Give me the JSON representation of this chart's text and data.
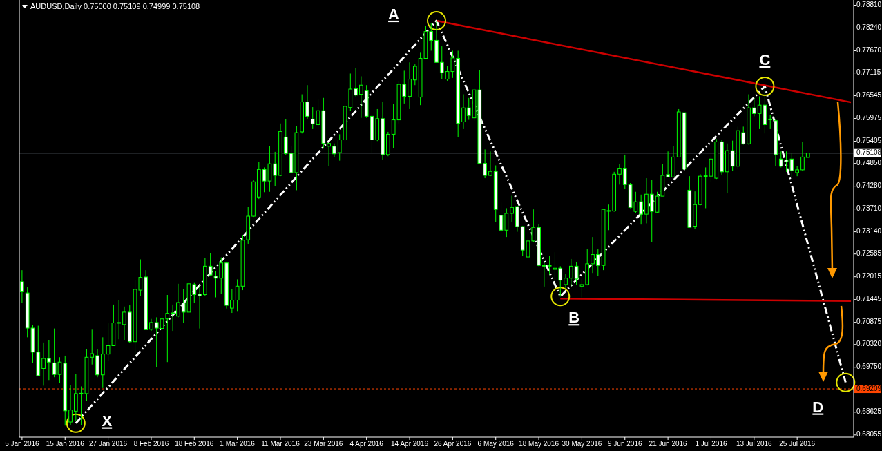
{
  "chart_data": {
    "type": "candlestick",
    "title": "AUDUSD,Daily  0.75000 0.75109 0.74999 0.75108",
    "color": "#00ff00",
    "categories": [
      "5 Jan 2016",
      null,
      null,
      null,
      null,
      null,
      null,
      null,
      "15 Jan 2016",
      null,
      null,
      null,
      null,
      null,
      null,
      null,
      "27 Jan 2016",
      null,
      null,
      null,
      null,
      null,
      null,
      null,
      "8 Feb 2016",
      null,
      null,
      null,
      null,
      null,
      null,
      null,
      "18 Feb 2016",
      null,
      null,
      null,
      null,
      null,
      null,
      null,
      "1 Mar 2016",
      null,
      null,
      null,
      null,
      null,
      null,
      null,
      "11 Mar 2016",
      null,
      null,
      null,
      null,
      null,
      null,
      null,
      "23 Mar 2016",
      null,
      null,
      null,
      null,
      null,
      null,
      null,
      "4 Apr 2016",
      null,
      null,
      null,
      null,
      null,
      null,
      null,
      "14 Apr 2016",
      null,
      null,
      null,
      null,
      null,
      null,
      null,
      "26 Apr 2016",
      null,
      null,
      null,
      null,
      null,
      null,
      null,
      "6 May 2016",
      null,
      null,
      null,
      null,
      null,
      null,
      null,
      "18 May 2016",
      null,
      null,
      null,
      null,
      null,
      null,
      null,
      "30 May 2016",
      null,
      null,
      null,
      null,
      null,
      null,
      null,
      "9 Jun 2016",
      null,
      null,
      null,
      null,
      null,
      null,
      null,
      "21 Jun 2016",
      null,
      null,
      null,
      null,
      null,
      null,
      null,
      "1 Jul 2016",
      null,
      null,
      null,
      null,
      null,
      null,
      null,
      "13 Jul 2016",
      null,
      null,
      null,
      null,
      null,
      null,
      null,
      "25 Jul 2016",
      null,
      null,
      null,
      null,
      null,
      null,
      null,
      null,
      null,
      null
    ],
    "ohlc": [
      [
        0.7189,
        0.7218,
        0.7136,
        0.7164
      ],
      [
        0.7161,
        0.7175,
        0.705,
        0.7073
      ],
      [
        0.7073,
        0.708,
        0.6985,
        0.7013
      ],
      [
        0.7013,
        0.7079,
        0.6954,
        0.6954
      ],
      [
        0.6972,
        0.7037,
        0.6929,
        0.6997
      ],
      [
        0.6997,
        0.7043,
        0.6943,
        0.6988
      ],
      [
        0.6986,
        0.7072,
        0.695,
        0.6957
      ],
      [
        0.6957,
        0.7,
        0.6936,
        0.6988
      ],
      [
        0.6985,
        0.7004,
        0.6829,
        0.6866
      ],
      [
        0.6838,
        0.6931,
        0.6831,
        0.6868
      ],
      [
        0.6865,
        0.6959,
        0.684,
        0.6909
      ],
      [
        0.6909,
        0.6927,
        0.6831,
        0.691
      ],
      [
        0.6909,
        0.702,
        0.689,
        0.7
      ],
      [
        0.7,
        0.7069,
        0.6982,
        0.7009
      ],
      [
        0.7004,
        0.702,
        0.695,
        0.6956
      ],
      [
        0.6956,
        0.705,
        0.6923,
        0.7008
      ],
      [
        0.7008,
        0.7085,
        0.699,
        0.7029
      ],
      [
        0.7029,
        0.7132,
        0.7029,
        0.7086
      ],
      [
        0.7086,
        0.7143,
        0.7045,
        0.7087
      ],
      [
        0.7082,
        0.7127,
        0.7043,
        0.7113
      ],
      [
        0.7113,
        0.713,
        0.7036,
        0.7039
      ],
      [
        0.7039,
        0.7193,
        0.7004,
        0.717
      ],
      [
        0.7168,
        0.7245,
        0.7154,
        0.72
      ],
      [
        0.7201,
        0.7218,
        0.7068,
        0.7069
      ],
      [
        0.707,
        0.7096,
        0.7066,
        0.7087
      ],
      [
        0.7087,
        0.71,
        0.6975,
        0.7073
      ],
      [
        0.7072,
        0.7118,
        0.7039,
        0.7096
      ],
      [
        0.7096,
        0.7156,
        0.6988,
        0.711
      ],
      [
        0.711,
        0.7132,
        0.7066,
        0.7111
      ],
      [
        0.7103,
        0.7184,
        0.71,
        0.7137
      ],
      [
        0.7136,
        0.7171,
        0.7086,
        0.7113
      ],
      [
        0.7113,
        0.7189,
        0.7086,
        0.7184
      ],
      [
        0.7182,
        0.7186,
        0.7136,
        0.7157
      ],
      [
        0.7158,
        0.7182,
        0.7072,
        0.7154
      ],
      [
        0.7157,
        0.7249,
        0.7154,
        0.7228
      ],
      [
        0.7228,
        0.7261,
        0.7203,
        0.7206
      ],
      [
        0.7203,
        0.7216,
        0.715,
        0.7198
      ],
      [
        0.7198,
        0.725,
        0.7158,
        0.7236
      ],
      [
        0.7236,
        0.7239,
        0.7122,
        0.713
      ],
      [
        0.7123,
        0.7171,
        0.7111,
        0.7143
      ],
      [
        0.7143,
        0.7195,
        0.7114,
        0.7178
      ],
      [
        0.7178,
        0.7306,
        0.7168,
        0.7293
      ],
      [
        0.7294,
        0.7377,
        0.7284,
        0.7353
      ],
      [
        0.7353,
        0.7444,
        0.7351,
        0.7439
      ],
      [
        0.7401,
        0.7489,
        0.7396,
        0.747
      ],
      [
        0.747,
        0.7475,
        0.7413,
        0.7441
      ],
      [
        0.7441,
        0.7529,
        0.7414,
        0.7484
      ],
      [
        0.7484,
        0.7514,
        0.7428,
        0.7455
      ],
      [
        0.7455,
        0.7585,
        0.7453,
        0.7565
      ],
      [
        0.7551,
        0.7596,
        0.7507,
        0.751
      ],
      [
        0.751,
        0.7529,
        0.746,
        0.7462
      ],
      [
        0.7462,
        0.7578,
        0.7418,
        0.7562
      ],
      [
        0.7564,
        0.7658,
        0.756,
        0.7639
      ],
      [
        0.7639,
        0.7681,
        0.7596,
        0.7603
      ],
      [
        0.7596,
        0.7626,
        0.7571,
        0.7584
      ],
      [
        0.7582,
        0.7645,
        0.7571,
        0.7617
      ],
      [
        0.7617,
        0.7649,
        0.7524,
        0.7535
      ],
      [
        0.7528,
        0.7537,
        0.7478,
        0.7535
      ],
      [
        0.7528,
        0.7535,
        0.75,
        0.7509
      ],
      [
        0.7512,
        0.7558,
        0.7492,
        0.7544
      ],
      [
        0.7544,
        0.7646,
        0.7514,
        0.7628
      ],
      [
        0.7625,
        0.771,
        0.7617,
        0.7671
      ],
      [
        0.7672,
        0.7724,
        0.7653,
        0.7656
      ],
      [
        0.7658,
        0.7703,
        0.7599,
        0.7681
      ],
      [
        0.7667,
        0.7681,
        0.7599,
        0.7603
      ],
      [
        0.7603,
        0.7607,
        0.7512,
        0.7544
      ],
      [
        0.7544,
        0.7621,
        0.7541,
        0.7597
      ],
      [
        0.7597,
        0.7639,
        0.7494,
        0.7507
      ],
      [
        0.7507,
        0.7564,
        0.7503,
        0.7558
      ],
      [
        0.7558,
        0.7634,
        0.7524,
        0.7594
      ],
      [
        0.7594,
        0.7692,
        0.7585,
        0.7683
      ],
      [
        0.7683,
        0.7717,
        0.7635,
        0.7653
      ],
      [
        0.7653,
        0.7738,
        0.7621,
        0.7696
      ],
      [
        0.7694,
        0.7733,
        0.7681,
        0.7728
      ],
      [
        0.7651,
        0.7762,
        0.7631,
        0.7748
      ],
      [
        0.7748,
        0.7829,
        0.7747,
        0.7815
      ],
      [
        0.7815,
        0.7836,
        0.7767,
        0.7793
      ],
      [
        0.7793,
        0.7842,
        0.7738,
        0.7738
      ],
      [
        0.7738,
        0.7778,
        0.7696,
        0.7712
      ],
      [
        0.7696,
        0.7729,
        0.7692,
        0.7715
      ],
      [
        0.7715,
        0.7767,
        0.7699,
        0.7749
      ],
      [
        0.7748,
        0.7767,
        0.7551,
        0.7585
      ],
      [
        0.7589,
        0.7658,
        0.7571,
        0.7624
      ],
      [
        0.7624,
        0.7649,
        0.7594,
        0.7605
      ],
      [
        0.7599,
        0.7672,
        0.7592,
        0.7669
      ],
      [
        0.7669,
        0.7719,
        0.7485,
        0.7485
      ],
      [
        0.7485,
        0.752,
        0.7448,
        0.7455
      ],
      [
        0.7455,
        0.7515,
        0.7453,
        0.7465
      ],
      [
        0.7465,
        0.748,
        0.7339,
        0.737
      ],
      [
        0.7355,
        0.7387,
        0.7308,
        0.7318
      ],
      [
        0.7318,
        0.7373,
        0.7301,
        0.736
      ],
      [
        0.736,
        0.7404,
        0.7339,
        0.7375
      ],
      [
        0.7377,
        0.7379,
        0.7314,
        0.7327
      ],
      [
        0.7327,
        0.7328,
        0.7253,
        0.7268
      ],
      [
        0.7251,
        0.7314,
        0.725,
        0.7291
      ],
      [
        0.7291,
        0.737,
        0.7289,
        0.7325
      ],
      [
        0.7325,
        0.7334,
        0.7228,
        0.723
      ],
      [
        0.723,
        0.7239,
        0.7177,
        0.7229
      ],
      [
        0.7229,
        0.7253,
        0.7207,
        0.723
      ],
      [
        0.722,
        0.7263,
        0.717,
        0.7223
      ],
      [
        0.7223,
        0.7228,
        0.7152,
        0.7193
      ],
      [
        0.7182,
        0.7208,
        0.7173,
        0.7198
      ],
      [
        0.7198,
        0.7246,
        0.7178,
        0.7228
      ],
      [
        0.7228,
        0.7239,
        0.7182,
        0.7196
      ],
      [
        0.7178,
        0.7196,
        0.715,
        0.7182
      ],
      [
        0.7182,
        0.727,
        0.718,
        0.7234
      ],
      [
        0.7234,
        0.7301,
        0.7211,
        0.7257
      ],
      [
        0.7257,
        0.727,
        0.7204,
        0.723
      ],
      [
        0.723,
        0.7371,
        0.7218,
        0.737
      ],
      [
        0.7366,
        0.7382,
        0.7318,
        0.7367
      ],
      [
        0.7366,
        0.7464,
        0.7364,
        0.7458
      ],
      [
        0.7458,
        0.7484,
        0.7432,
        0.7473
      ],
      [
        0.7473,
        0.7507,
        0.7421,
        0.7432
      ],
      [
        0.7432,
        0.7436,
        0.7373,
        0.7375
      ],
      [
        0.7365,
        0.7414,
        0.736,
        0.7389
      ],
      [
        0.7389,
        0.7407,
        0.7332,
        0.7358
      ],
      [
        0.7358,
        0.7448,
        0.7335,
        0.7408
      ],
      [
        0.7408,
        0.7443,
        0.7289,
        0.7365
      ],
      [
        0.7363,
        0.7414,
        0.736,
        0.7403
      ],
      [
        0.7403,
        0.7484,
        0.7403,
        0.7455
      ],
      [
        0.7457,
        0.7515,
        0.745,
        0.7451
      ],
      [
        0.7451,
        0.7528,
        0.745,
        0.7501
      ],
      [
        0.7501,
        0.7621,
        0.75,
        0.7614
      ],
      [
        0.7612,
        0.7651,
        0.7306,
        0.7471
      ],
      [
        0.7418,
        0.7453,
        0.7325,
        0.7325
      ],
      [
        0.7328,
        0.7415,
        0.7321,
        0.7382
      ],
      [
        0.7382,
        0.7458,
        0.738,
        0.7453
      ],
      [
        0.7453,
        0.7475,
        0.7373,
        0.7454
      ],
      [
        0.7453,
        0.7503,
        0.7439,
        0.7496
      ],
      [
        0.7448,
        0.7546,
        0.7446,
        0.7539
      ],
      [
        0.7539,
        0.7544,
        0.7457,
        0.7464
      ],
      [
        0.7464,
        0.7535,
        0.741,
        0.7517
      ],
      [
        0.7517,
        0.7542,
        0.7467,
        0.7478
      ],
      [
        0.7478,
        0.7577,
        0.7471,
        0.7567
      ],
      [
        0.7562,
        0.7577,
        0.7532,
        0.7534
      ],
      [
        0.7534,
        0.7658,
        0.7532,
        0.7624
      ],
      [
        0.7624,
        0.7649,
        0.7603,
        0.761
      ],
      [
        0.761,
        0.7653,
        0.7571,
        0.7631
      ],
      [
        0.7631,
        0.7678,
        0.756,
        0.7582
      ],
      [
        0.7596,
        0.7607,
        0.7571,
        0.7595
      ],
      [
        0.7592,
        0.7596,
        0.7478,
        0.7507
      ],
      [
        0.7496,
        0.7515,
        0.7475,
        0.7478
      ],
      [
        0.7494,
        0.7515,
        0.7464,
        0.7489
      ],
      [
        0.7496,
        0.751,
        0.745,
        0.7467
      ],
      [
        0.7462,
        0.7478,
        0.7453,
        0.7469
      ],
      [
        0.7469,
        0.7539,
        0.7467,
        0.7501
      ],
      [
        0.75,
        0.75109,
        0.74999,
        0.75108
      ],
      null,
      null,
      null,
      null,
      null,
      null,
      null,
      null
    ],
    "series": [
      {
        "type": "line",
        "color": "#ffffff",
        "line_style": "dashed",
        "marker": "circle",
        "values": [
          null,
          null,
          null,
          null,
          null,
          null,
          null,
          null,
          null,
          null,
          0.6835,
          null,
          null,
          null,
          null,
          null,
          null,
          null,
          null,
          null,
          null,
          null,
          null,
          null,
          null,
          null,
          null,
          null,
          null,
          null,
          null,
          null,
          null,
          null,
          null,
          null,
          null,
          null,
          null,
          null,
          null,
          null,
          null,
          null,
          null,
          null,
          null,
          null,
          null,
          null,
          null,
          null,
          null,
          null,
          null,
          null,
          null,
          null,
          null,
          null,
          null,
          null,
          null,
          null,
          null,
          null,
          null,
          null,
          null,
          null,
          null,
          null,
          null,
          null,
          null,
          null,
          null,
          0.7842,
          null,
          null,
          null,
          null,
          null,
          null,
          null,
          null,
          null,
          null,
          null,
          null,
          null,
          null,
          null,
          null,
          null,
          null,
          null,
          null,
          null,
          null,
          0.7152,
          null,
          null,
          null,
          null,
          null,
          null,
          null,
          null,
          null,
          null,
          null,
          null,
          null,
          null,
          null,
          null,
          null,
          null,
          null,
          null,
          null,
          null,
          null,
          null,
          null,
          null,
          null,
          null,
          null,
          null,
          null,
          null,
          null,
          null,
          null,
          null,
          null,
          0.7678,
          null,
          null,
          null,
          null,
          null,
          null,
          null,
          null,
          null,
          null,
          null,
          null,
          null,
          null,
          0.6937,
          null
        ]
      },
      {
        "type": "line",
        "color": "#cc0000",
        "values": [
          null,
          null,
          null,
          null,
          null,
          null,
          null,
          null,
          null,
          null,
          null,
          null,
          null,
          null,
          null,
          null,
          null,
          null,
          null,
          null,
          null,
          null,
          null,
          null,
          null,
          null,
          null,
          null,
          null,
          null,
          null,
          null,
          null,
          null,
          null,
          null,
          null,
          null,
          null,
          null,
          null,
          null,
          null,
          null,
          null,
          null,
          null,
          null,
          null,
          null,
          null,
          null,
          null,
          null,
          null,
          null,
          null,
          null,
          null,
          null,
          null,
          null,
          null,
          null,
          null,
          null,
          null,
          null,
          null,
          null,
          null,
          null,
          null,
          null,
          null,
          null,
          null,
          0.7842,
          null,
          null,
          null,
          null,
          null,
          null,
          null,
          null,
          null,
          null,
          null,
          null,
          null,
          null,
          null,
          null,
          null,
          null,
          null,
          null,
          null,
          null,
          null,
          null,
          null,
          null,
          null,
          null,
          null,
          null,
          null,
          null,
          null,
          null,
          null,
          null,
          null,
          null,
          null,
          null,
          null,
          null,
          null,
          null,
          null,
          null,
          null,
          null,
          null,
          null,
          null,
          null,
          null,
          null,
          null,
          null,
          null,
          null,
          null,
          null,
          null,
          null,
          null,
          null,
          null,
          null,
          null,
          null,
          null,
          null,
          null,
          null,
          null,
          null,
          null,
          null,
          0.7638
        ]
      },
      {
        "type": "line",
        "color": "#cc0000",
        "values": [
          null,
          null,
          null,
          null,
          null,
          null,
          null,
          null,
          null,
          null,
          null,
          null,
          null,
          null,
          null,
          null,
          null,
          null,
          null,
          null,
          null,
          null,
          null,
          null,
          null,
          null,
          null,
          null,
          null,
          null,
          null,
          null,
          null,
          null,
          null,
          null,
          null,
          null,
          null,
          null,
          null,
          null,
          null,
          null,
          null,
          null,
          null,
          null,
          null,
          null,
          null,
          null,
          null,
          null,
          null,
          null,
          null,
          null,
          null,
          null,
          null,
          null,
          null,
          null,
          null,
          null,
          null,
          null,
          null,
          null,
          null,
          null,
          null,
          null,
          null,
          null,
          null,
          null,
          null,
          null,
          null,
          null,
          null,
          null,
          null,
          null,
          null,
          null,
          null,
          null,
          null,
          null,
          null,
          null,
          null,
          null,
          null,
          null,
          null,
          null,
          0.7147,
          null,
          null,
          null,
          null,
          null,
          null,
          null,
          null,
          null,
          null,
          null,
          null,
          null,
          null,
          null,
          null,
          null,
          null,
          null,
          null,
          null,
          null,
          null,
          null,
          null,
          null,
          null,
          null,
          null,
          null,
          null,
          null,
          null,
          null,
          null,
          null,
          null,
          null,
          null,
          null,
          null,
          null,
          null,
          null,
          null,
          null,
          null,
          null,
          null,
          null,
          null,
          null,
          null,
          0.7141
        ]
      }
    ],
    "annotations": [
      "X",
      "A",
      "B",
      "C",
      "D"
    ],
    "ref_lines": [
      {
        "axis": "y",
        "value": 0.75108,
        "label": "0.75108",
        "color": "#8797a6"
      },
      {
        "axis": "y",
        "value": 0.69209,
        "label": "0.69209",
        "color": "#ff4500",
        "line_style": "dashed"
      }
    ],
    "ylim": [
      0.68,
      0.7894
    ],
    "yticks": [
      {
        "value": 0.7881,
        "label": "0.78810"
      },
      {
        "value": 0.7824,
        "label": "0.78240"
      },
      {
        "value": 0.7767,
        "label": "0.77670"
      },
      {
        "value": 0.77115,
        "label": "0.77115"
      },
      {
        "value": 0.76545,
        "label": "0.76545"
      },
      {
        "value": 0.75975,
        "label": "0.75975"
      },
      {
        "value": 0.75405,
        "label": "0.75405"
      },
      {
        "value": 0.7485,
        "label": "0.74850"
      },
      {
        "value": 0.7428,
        "label": "0.74280"
      },
      {
        "value": 0.7371,
        "label": "0.73710"
      },
      {
        "value": 0.7314,
        "label": "0.73140"
      },
      {
        "value": 0.72585,
        "label": "0.72585"
      },
      {
        "value": 0.72015,
        "label": "0.72015"
      },
      {
        "value": 0.71445,
        "label": "0.71445"
      },
      {
        "value": 0.70875,
        "label": "0.70875"
      },
      {
        "value": 0.7032,
        "label": "0.70320"
      },
      {
        "value": 0.6975,
        "label": "0.69750"
      },
      {
        "value": 0.68625,
        "label": "0.68625"
      },
      {
        "value": 0.68055,
        "label": "0.68055"
      }
    ]
  }
}
